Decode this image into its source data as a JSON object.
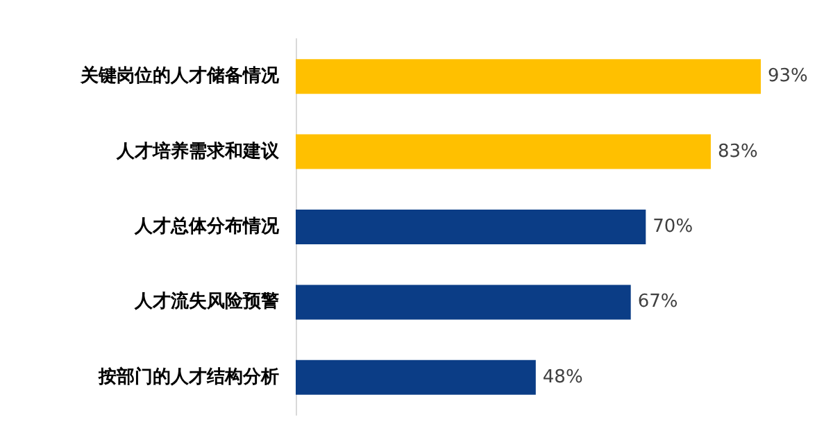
{
  "chart_data": {
    "type": "bar",
    "orientation": "horizontal",
    "categories": [
      "关键岗位的人才储备情况",
      "人才培养需求和建议",
      "人才总体分布情况",
      "人才流失风险预警",
      "按部门的人才结构分析"
    ],
    "values": [
      93,
      83,
      70,
      67,
      48
    ],
    "colors": [
      "#ffc000",
      "#ffc000",
      "#0b3d86",
      "#0b3d86",
      "#0b3d86"
    ],
    "value_labels": [
      "93%",
      "83%",
      "70%",
      "67%",
      "48%"
    ]
  }
}
